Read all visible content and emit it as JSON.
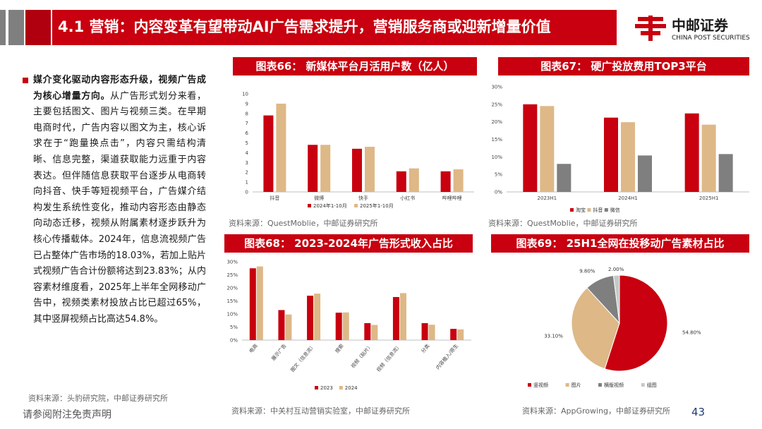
{
  "header": {
    "title": "4.1 营销：内容变革有望带动AI广告需求提升，营销服务商或迎新增量价值",
    "logo_cn": "中邮证券",
    "logo_en": "CHINA POST SECURITIES"
  },
  "body": {
    "lead": "媒介变化驱动内容形态升级，视频广告成为核心增量方向。",
    "text": "从广告形式划分来看，主要包括图文、图片与视频三类。在早期电商时代，广告内容以图文为主，核心诉求在于“跑量换点击”，内容只需结构清晰、信息完整，渠道获取能力远重于内容表达。但伴随信息获取平台逐步从电商转向抖音、快手等短视频平台，广告媒介结构发生系统性变化，推动内容形态由静态向动态迁移，视频从附属素材逐步跃升为核心传播载体。2024年，信息流视频广告已占整体广告市场的18.03%，若加上贴片式视频广告合计份额将达到23.83%；从内容素材维度看，2025年上半年全网移动广告中，视频类素材投放占比已超过65%，其中竖屏视频占比高达54.8%。",
    "source": "资料来源：头豹研究院，中邮证券研究所"
  },
  "footer": {
    "disclaimer": "请参阅附注免责声明",
    "page": "43"
  },
  "colors": {
    "red": "#c8000f",
    "tan": "#deb887",
    "gray": "#7f7f7f",
    "lightgray": "#c8c8c8"
  },
  "chart_data": [
    {
      "id": "chart66",
      "type": "bar",
      "title": "图表66： 新媒体平台月活用户数（亿人）",
      "categories": [
        "抖音",
        "微博",
        "快手",
        "小红书",
        "哔哩哔哩"
      ],
      "series": [
        {
          "name": "2024年1-10月",
          "values": [
            7.8,
            4.8,
            4.4,
            2.1,
            2.1
          ]
        },
        {
          "name": "2025年1-10月",
          "values": [
            9.0,
            4.8,
            4.6,
            2.4,
            2.3
          ]
        }
      ],
      "yticks": [
        "0",
        "1",
        "2",
        "3",
        "4",
        "5",
        "6",
        "7",
        "8",
        "9",
        "10"
      ],
      "ylim": [
        0,
        10
      ],
      "source": "资料来源：QuestMoblie，中邮证券研究所"
    },
    {
      "id": "chart67",
      "type": "bar",
      "title": "图表67： 硬广投放费用TOP3平台",
      "categories": [
        "2023H1",
        "2024H1",
        "2025H1"
      ],
      "series": [
        {
          "name": "淘宝",
          "values": [
            25.0,
            21.2,
            22.4
          ]
        },
        {
          "name": "抖音",
          "values": [
            24.5,
            19.9,
            19.2
          ]
        },
        {
          "name": "微信",
          "values": [
            8.0,
            10.4,
            10.8
          ]
        }
      ],
      "yticks": [
        "0%",
        "5%",
        "10%",
        "15%",
        "20%",
        "25%",
        "30%"
      ],
      "ylim": [
        0,
        30
      ],
      "source": "资料来源：QuestMoblie，中邮证券研究所"
    },
    {
      "id": "chart68",
      "type": "bar",
      "title": "图表68： 2023-2024年广告形式收入占比",
      "categories": [
        "电商",
        "展示广告",
        "图文（信息流）",
        "搜索",
        "视频（贴片）",
        "视频（信息流）",
        "分类",
        "内容植入/原生"
      ],
      "series": [
        {
          "name": "2023",
          "values": [
            27.5,
            11.5,
            17.0,
            10.5,
            6.5,
            16.5,
            6.5,
            4.3
          ]
        },
        {
          "name": "2024",
          "values": [
            28.2,
            9.8,
            17.8,
            10.6,
            5.8,
            18.0,
            5.9,
            4.1
          ]
        }
      ],
      "yticks": [
        "0%",
        "5%",
        "10%",
        "15%",
        "20%",
        "25%",
        "30%"
      ],
      "ylim": [
        0,
        30
      ],
      "source": "资料来源：中关村互动营销实验室，中邮证券研究所"
    },
    {
      "id": "chart69",
      "type": "pie",
      "title": "图表69： 25H1全网在投移动广告素材占比",
      "labels": [
        "竖视频",
        "图片",
        "横版视频",
        "组图"
      ],
      "values": [
        54.8,
        33.1,
        9.8,
        2.0
      ],
      "value_labels": [
        "54.80%",
        "33.10%",
        "9.80%",
        "2.00%"
      ],
      "source": "资料来源：AppGrowing，中邮证券研究所"
    }
  ]
}
